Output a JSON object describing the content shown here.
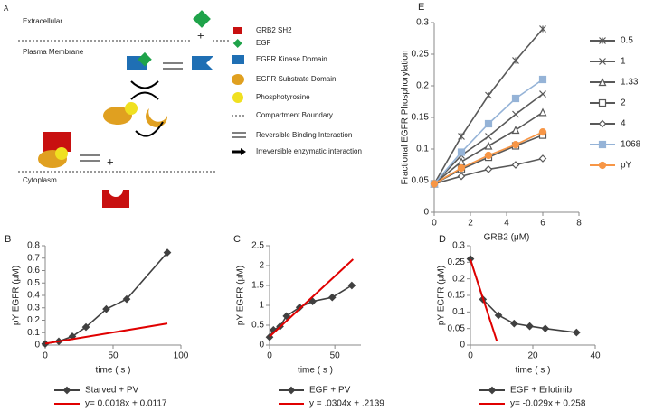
{
  "diagram": {
    "label": "A",
    "extracellular": "Extracellular",
    "plasma_membrane": "Plasma Membrane",
    "cytoplasm": "Cytoplasm",
    "plus": "+",
    "legend": [
      "GRB2 SH2",
      "EGF",
      "EGFR Kinase Domain",
      "EGFR Substrate Domain",
      "Phosphotyrosine",
      "Compartment Boundary",
      "Reversible Binding Interaction",
      "Irreversible enzymatic interaction"
    ]
  },
  "chart_data": [
    {
      "type": "line",
      "label": "B",
      "xlabel": "time ( s )",
      "ylabel": "pY EGFR (μM)",
      "xlim": [
        0,
        100
      ],
      "ylim": [
        0,
        0.8
      ],
      "xticks": [
        0,
        50,
        100
      ],
      "yticks": [
        0,
        0.1,
        0.2,
        0.3,
        0.4,
        0.5,
        0.6,
        0.7,
        0.8
      ],
      "legend": "bottom",
      "series": [
        {
          "name": "Starved + PV",
          "color": "#404040",
          "marker": "diamond",
          "x": [
            0,
            10,
            20,
            30,
            45,
            60,
            90
          ],
          "values": [
            0.01,
            0.03,
            0.07,
            0.145,
            0.29,
            0.37,
            0.745
          ]
        },
        {
          "name": "y= 0.0018x + 0.0117",
          "color": "#e00000",
          "marker": "none",
          "x": [
            0,
            90
          ],
          "values": [
            0.0117,
            0.1737
          ]
        }
      ]
    },
    {
      "type": "line",
      "label": "C",
      "xlabel": "time ( s )",
      "ylabel": "pY EGFR (μM)",
      "xlim": [
        0,
        70
      ],
      "ylim": [
        0,
        2.5
      ],
      "xticks": [
        0,
        50
      ],
      "yticks": [
        0,
        0.5,
        1,
        1.5,
        2,
        2.5
      ],
      "legend": "bottom",
      "series": [
        {
          "name": "EGF + PV",
          "color": "#404040",
          "marker": "diamond",
          "x": [
            0,
            3,
            8,
            13,
            23,
            33,
            48,
            63
          ],
          "values": [
            0.2,
            0.38,
            0.47,
            0.73,
            0.95,
            1.1,
            1.2,
            1.5
          ]
        },
        {
          "name": "y = .0304x + .2139",
          "color": "#e00000",
          "marker": "none",
          "x": [
            0,
            64
          ],
          "values": [
            0.2139,
            2.1595
          ]
        }
      ]
    },
    {
      "type": "line",
      "label": "D",
      "xlabel": "time ( s )",
      "ylabel": "pY EGFR (μM)",
      "xlim": [
        0,
        40
      ],
      "ylim": [
        0,
        0.3
      ],
      "xticks": [
        0,
        20,
        40
      ],
      "yticks": [
        0,
        0.05,
        0.1,
        0.15,
        0.2,
        0.25,
        0.3
      ],
      "legend": "bottom",
      "series": [
        {
          "name": "EGF + Erlotinib",
          "color": "#404040",
          "marker": "diamond",
          "x": [
            0,
            4,
            9,
            14,
            19,
            24,
            34
          ],
          "values": [
            0.26,
            0.138,
            0.09,
            0.065,
            0.057,
            0.05,
            0.038
          ]
        },
        {
          "name": "y= -0.029x + 0.258",
          "color": "#e00000",
          "marker": "none",
          "x": [
            0,
            8.5
          ],
          "values": [
            0.258,
            0.0115
          ]
        }
      ]
    },
    {
      "type": "line",
      "label": "E",
      "xlabel": "GRB2 (μM)",
      "ylabel": "Fractional EGFR Phosphorylation",
      "xlim": [
        0,
        8
      ],
      "ylim": [
        0,
        0.3
      ],
      "xticks": [
        0,
        2,
        4,
        6,
        8
      ],
      "yticks": [
        0,
        0.05,
        0.1,
        0.15,
        0.2,
        0.25,
        0.3
      ],
      "legend": "right",
      "series": [
        {
          "name": "0.5",
          "color": "#595959",
          "marker": "asterisk",
          "x": [
            0,
            1.5,
            3,
            4.5,
            6
          ],
          "values": [
            0.045,
            0.12,
            0.185,
            0.24,
            0.29
          ]
        },
        {
          "name": "1",
          "color": "#595959",
          "marker": "cross",
          "x": [
            0,
            1.5,
            3,
            4.5,
            6
          ],
          "values": [
            0.045,
            0.09,
            0.12,
            0.155,
            0.187
          ]
        },
        {
          "name": "1.33",
          "color": "#595959",
          "marker": "triangle",
          "x": [
            0,
            1.5,
            3,
            4.5,
            6
          ],
          "values": [
            0.045,
            0.08,
            0.105,
            0.13,
            0.158
          ]
        },
        {
          "name": "2",
          "color": "#595959",
          "marker": "square",
          "x": [
            0,
            1.5,
            3,
            4.5,
            6
          ],
          "values": [
            0.045,
            0.068,
            0.087,
            0.105,
            0.122
          ]
        },
        {
          "name": "4",
          "color": "#595959",
          "marker": "diamond-open",
          "x": [
            0,
            1.5,
            3,
            4.5,
            6
          ],
          "values": [
            0.045,
            0.057,
            0.068,
            0.075,
            0.085
          ]
        },
        {
          "name": "1068",
          "color": "#95b3d7",
          "marker": "square-filled",
          "x": [
            0,
            1.5,
            3,
            4.5,
            6
          ],
          "values": [
            0.045,
            0.095,
            0.14,
            0.18,
            0.21
          ]
        },
        {
          "name": "pY",
          "color": "#f79646",
          "marker": "circle",
          "x": [
            0,
            1.5,
            3,
            4.5,
            6
          ],
          "values": [
            0.045,
            0.07,
            0.09,
            0.107,
            0.127
          ]
        }
      ]
    }
  ]
}
